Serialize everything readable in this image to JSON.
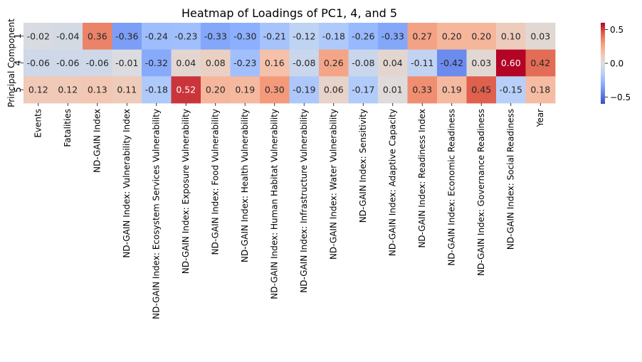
{
  "chart_data": {
    "type": "heatmap",
    "title": "Heatmap of Loadings of PC1, 4, and 5",
    "xlabel": "",
    "ylabel": "Principal Component",
    "rows": [
      "1",
      "4",
      "5"
    ],
    "columns": [
      "Events",
      "Fatalities",
      "ND-GAIN Index",
      "ND-GAIN Index: Vulnerability Index",
      "ND-GAIN Index: Ecosystem Services Vulnerability",
      "ND-GAIN Index: Exposure Vulnerability",
      "ND-GAIN Index: Food Vulnerability",
      "ND-GAIN Index: Health Vulnerability",
      "ND-GAIN Index: Human Habitat Vulnerability",
      "ND-GAIN Index: Infrastructure Vulnerability",
      "ND-GAIN Index: Water Vulnerability",
      "ND-GAIN Index: Sensitivity",
      "ND-GAIN Index: Adaptive Capacity",
      "ND-GAIN Index: Readiness Index",
      "ND-GAIN Index: Economic Readiness",
      "ND-GAIN Index: Governance Readiness",
      "ND-GAIN Index: Social Readiness",
      "Year"
    ],
    "values": [
      [
        -0.02,
        -0.04,
        0.36,
        -0.36,
        -0.24,
        -0.23,
        -0.33,
        -0.3,
        -0.21,
        -0.12,
        -0.18,
        -0.26,
        -0.33,
        0.27,
        0.2,
        0.2,
        0.1,
        0.03
      ],
      [
        -0.06,
        -0.06,
        -0.06,
        -0.01,
        -0.32,
        0.04,
        0.08,
        -0.23,
        0.16,
        -0.08,
        0.26,
        -0.08,
        0.04,
        -0.11,
        -0.42,
        0.03,
        0.6,
        0.42
      ],
      [
        0.12,
        0.12,
        0.13,
        0.11,
        -0.18,
        0.52,
        0.2,
        0.19,
        0.3,
        -0.19,
        0.06,
        -0.17,
        0.01,
        0.33,
        0.19,
        0.45,
        -0.15,
        0.18
      ]
    ],
    "annotations": [
      [
        "-0.02",
        "-0.04",
        "0.36",
        "-0.36",
        "-0.24",
        "-0.23",
        "-0.33",
        "-0.30",
        "-0.21",
        "-0.12",
        "-0.18",
        "-0.26",
        "-0.33",
        "0.27",
        "0.20",
        "0.20",
        "0.10",
        "0.03"
      ],
      [
        "-0.06",
        "-0.06",
        "-0.06",
        "-0.01",
        "-0.32",
        "0.04",
        "0.08",
        "-0.23",
        "0.16",
        "-0.08",
        "0.26",
        "-0.08",
        "0.04",
        "-0.11",
        "-0.42",
        "0.03",
        "0.60",
        "0.42"
      ],
      [
        "0.12",
        "0.12",
        "0.13",
        "0.11",
        "-0.18",
        "0.52",
        "0.20",
        "0.19",
        "0.30",
        "-0.19",
        "0.06",
        "-0.17",
        "0.01",
        "0.33",
        "0.19",
        "0.45",
        "-0.15",
        "0.18"
      ]
    ],
    "colormap": "coolwarm",
    "vmin": -0.6,
    "vmax": 0.6,
    "colorbar": {
      "ticks": [
        -0.5,
        0.0,
        0.5
      ],
      "tick_labels": [
        "−0.5",
        "0.0",
        "0.5"
      ],
      "placement": "right"
    },
    "grid": false
  }
}
